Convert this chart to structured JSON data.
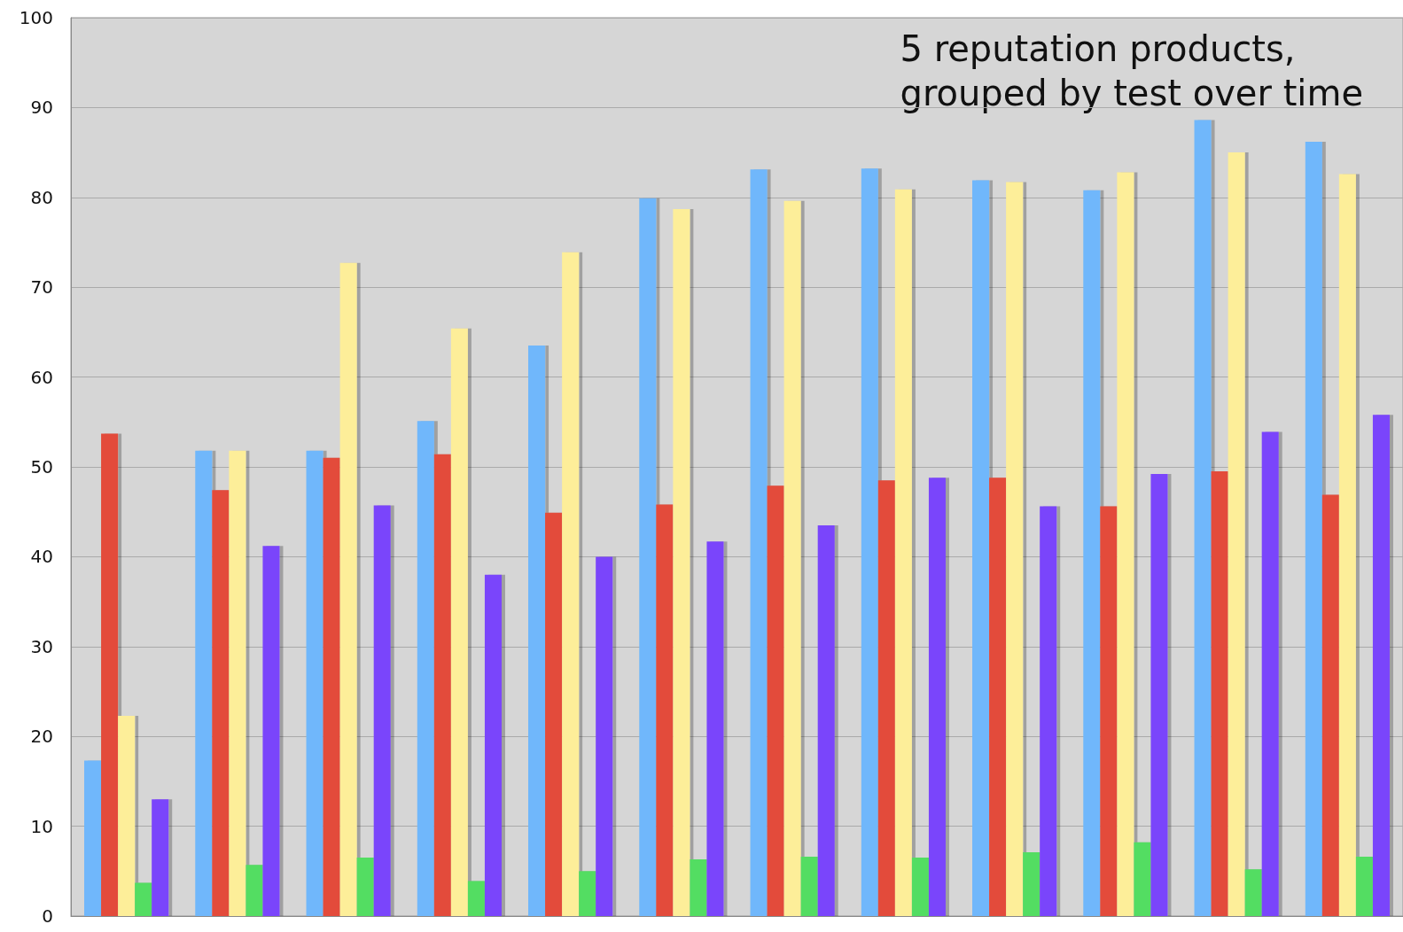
{
  "chart_data": {
    "type": "bar",
    "categories": [
      null,
      null,
      null,
      null,
      null,
      null,
      null,
      null,
      null,
      null,
      null,
      null
    ],
    "series": [
      {
        "color": "#6fb7fb",
        "values": [
          17.3,
          51.8,
          51.8,
          55.1,
          63.5,
          79.9,
          83.1,
          83.2,
          81.9,
          80.8,
          88.6,
          86.2
        ]
      },
      {
        "color": "#e34b3b",
        "values": [
          53.7,
          47.4,
          51.0,
          51.4,
          44.9,
          45.8,
          47.9,
          48.5,
          48.8,
          45.6,
          49.5,
          46.9
        ]
      },
      {
        "color": "#fdee99",
        "values": [
          22.3,
          51.8,
          72.7,
          65.4,
          73.9,
          78.7,
          79.6,
          80.9,
          81.7,
          82.8,
          85.0,
          82.6
        ]
      },
      {
        "color": "#52dd62",
        "values": [
          3.7,
          5.7,
          6.5,
          3.9,
          5.0,
          6.3,
          6.6,
          6.5,
          7.1,
          8.2,
          5.2,
          6.6
        ]
      },
      {
        "color": "#7a45fb",
        "values": [
          13.0,
          41.2,
          45.7,
          38.0,
          40.0,
          41.7,
          43.5,
          48.8,
          45.6,
          49.2,
          53.9,
          55.8
        ]
      }
    ],
    "ylim": [
      0,
      100
    ],
    "yticks": [
      0,
      10,
      20,
      30,
      40,
      50,
      60,
      70,
      80,
      90,
      100
    ],
    "grid": "y",
    "annotations": [
      "5 reputation products,\ngrouped by test over time"
    ]
  }
}
